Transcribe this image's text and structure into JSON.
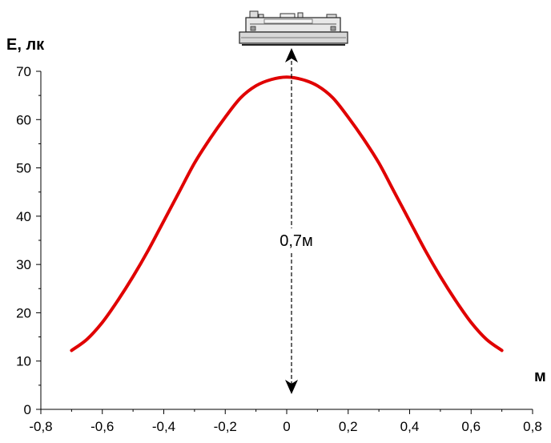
{
  "chart_data": {
    "type": "line",
    "ylabel": "E, лк",
    "xlabel": "м",
    "xlim": [
      -0.8,
      0.8
    ],
    "ylim": [
      0,
      70
    ],
    "x_ticks": [
      "-0,8",
      "-0,6",
      "-0,4",
      "-0,2",
      "0",
      "0,2",
      "0,4",
      "0,6",
      "0,8"
    ],
    "x_tick_values": [
      -0.8,
      -0.6,
      -0.4,
      -0.2,
      0,
      0.2,
      0.4,
      0.6,
      0.8
    ],
    "y_ticks": [
      "0",
      "10",
      "20",
      "30",
      "40",
      "50",
      "60",
      "70"
    ],
    "y_tick_values": [
      0,
      10,
      20,
      30,
      40,
      50,
      60,
      70
    ],
    "grid": false,
    "annotation": "0,7м",
    "series": [
      {
        "color": "#e00000",
        "x": [
          -0.7,
          -0.65,
          -0.6,
          -0.55,
          -0.5,
          -0.45,
          -0.4,
          -0.35,
          -0.3,
          -0.25,
          -0.2,
          -0.15,
          -0.1,
          -0.05,
          0,
          0.05,
          0.1,
          0.15,
          0.2,
          0.25,
          0.3,
          0.35,
          0.4,
          0.45,
          0.5,
          0.55,
          0.6,
          0.65,
          0.7
        ],
        "y": [
          12.2,
          14.5,
          18.0,
          22.5,
          27.5,
          33.0,
          39.0,
          45.0,
          51.0,
          56.0,
          60.5,
          64.5,
          67.0,
          68.3,
          68.8,
          68.3,
          67.0,
          64.5,
          60.5,
          56.0,
          51.0,
          45.0,
          39.0,
          33.0,
          27.5,
          22.5,
          18.0,
          14.5,
          12.2
        ]
      }
    ]
  }
}
